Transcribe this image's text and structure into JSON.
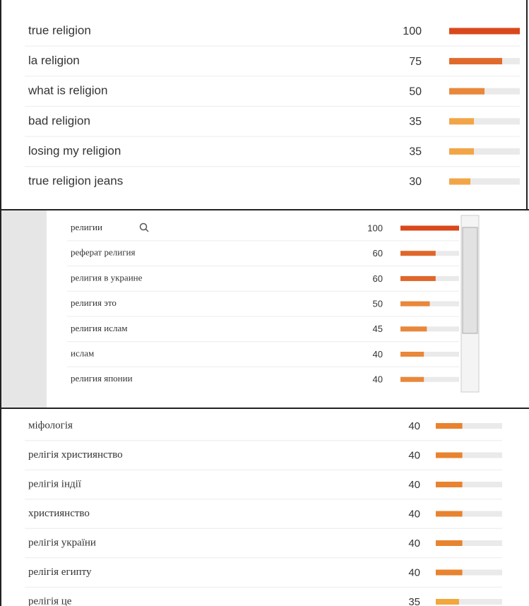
{
  "panels": [
    {
      "xlim": [
        0,
        100
      ],
      "rows": [
        {
          "label": "true religion",
          "value": 100,
          "color": "#d9481c"
        },
        {
          "label": "la religion",
          "value": 75,
          "color": "#e06a2c"
        },
        {
          "label": "what is religion",
          "value": 50,
          "color": "#e9873a"
        },
        {
          "label": "bad religion",
          "value": 35,
          "color": "#f2a547"
        },
        {
          "label": "losing my religion",
          "value": 35,
          "color": "#f2a547"
        },
        {
          "label": "true religion jeans",
          "value": 30,
          "color": "#f2a547"
        }
      ]
    },
    {
      "xlim": [
        0,
        100
      ],
      "rows": [
        {
          "label": "религии",
          "value": 100,
          "color": "#d9481c"
        },
        {
          "label": "реферат религия",
          "value": 60,
          "color": "#e0662a"
        },
        {
          "label": "религия в украине",
          "value": 60,
          "color": "#e0662a"
        },
        {
          "label": "религия это",
          "value": 50,
          "color": "#e9873a"
        },
        {
          "label": "религия ислам",
          "value": 45,
          "color": "#e9873a"
        },
        {
          "label": "ислам",
          "value": 40,
          "color": "#e9873a"
        },
        {
          "label": "религия японии",
          "value": 40,
          "color": "#e9873a"
        }
      ]
    },
    {
      "xlim": [
        0,
        100
      ],
      "rows": [
        {
          "label": "міфологія",
          "value": 40,
          "color": "#e8832f"
        },
        {
          "label": "релігія християнство",
          "value": 40,
          "color": "#e8832f"
        },
        {
          "label": "релігія індії",
          "value": 40,
          "color": "#e8832f"
        },
        {
          "label": "християнство",
          "value": 40,
          "color": "#e8832f"
        },
        {
          "label": "релігія україни",
          "value": 40,
          "color": "#e8832f"
        },
        {
          "label": "релігія египту",
          "value": 40,
          "color": "#e8832f"
        },
        {
          "label": "релігія це",
          "value": 35,
          "color": "#f2a63b"
        }
      ]
    }
  ]
}
